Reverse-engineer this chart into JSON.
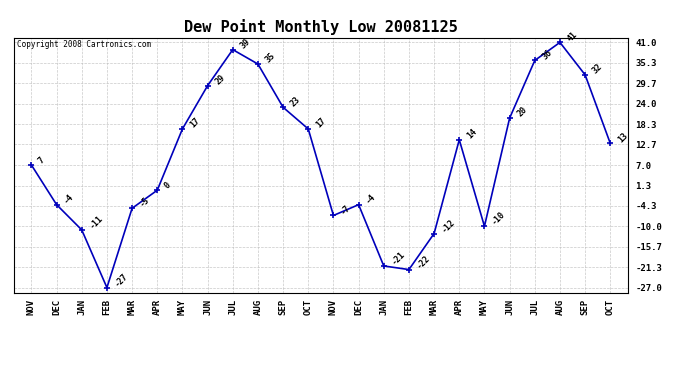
{
  "title": "Dew Point Monthly Low 20081125",
  "copyright": "Copyright 2008 Cartronics.com",
  "months": [
    "NOV",
    "DEC",
    "JAN",
    "FEB",
    "MAR",
    "APR",
    "MAY",
    "JUN",
    "JUL",
    "AUG",
    "SEP",
    "OCT",
    "NOV",
    "DEC",
    "JAN",
    "FEB",
    "MAR",
    "APR",
    "MAY",
    "JUN",
    "JUL",
    "AUG",
    "SEP",
    "OCT"
  ],
  "values": [
    7,
    -4,
    -11,
    -27,
    -5,
    0,
    17,
    29,
    39,
    35,
    23,
    17,
    -7,
    -4,
    -21,
    -22,
    -12,
    14,
    -10,
    20,
    36,
    41,
    32,
    13
  ],
  "ylim": [
    -27,
    41
  ],
  "yticks": [
    -27.0,
    -21.3,
    -15.7,
    -10.0,
    -4.3,
    1.3,
    7.0,
    12.7,
    18.3,
    24.0,
    29.7,
    35.3,
    41.0
  ],
  "ytick_labels": [
    "-27.0",
    "-21.3",
    "-15.7",
    "-10.0",
    "-4.3",
    "1.3",
    "7.0",
    "12.7",
    "18.3",
    "24.0",
    "29.7",
    "35.3",
    "41.0"
  ],
  "line_color": "#0000bb",
  "grid_color": "#bbbbbb",
  "background_color": "#ffffff",
  "title_fontsize": 11,
  "label_fontsize": 6,
  "axis_fontsize": 6.5
}
